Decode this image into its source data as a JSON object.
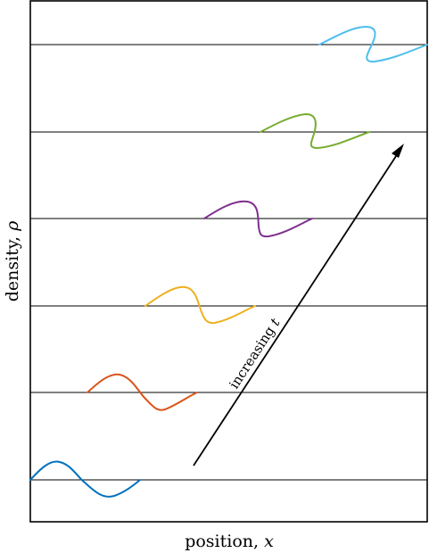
{
  "diagram": {
    "xlabel_text": "position, ",
    "xlabel_symbol": "x",
    "ylabel_text": "density, ",
    "ylabel_symbol": "ρ",
    "arrow_label_text": "increasing ",
    "arrow_label_symbol": "t",
    "wave_count": 6,
    "wave_colors": [
      "#0072BD",
      "#D95319",
      "#EDB120",
      "#7E2F8E",
      "#77AC30",
      "#4DBEEE"
    ],
    "axis_color": "#000000",
    "baseline_color": "#000000"
  }
}
